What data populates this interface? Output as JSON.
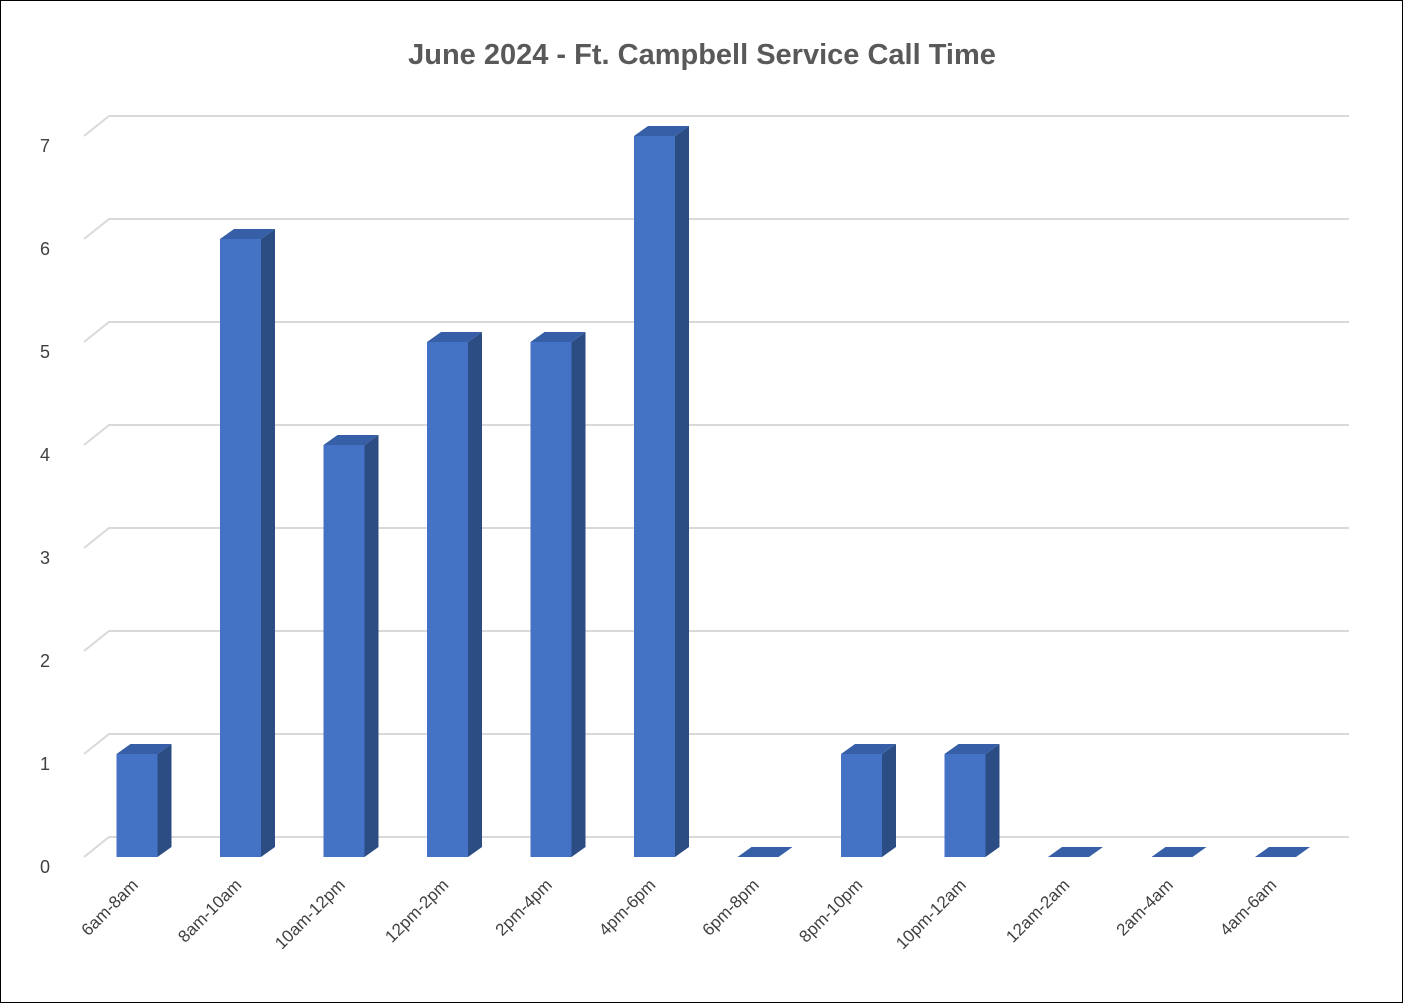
{
  "chart_data": {
    "type": "bar",
    "title": "June 2024 - Ft. Campbell Service Call Time",
    "xlabel": "",
    "ylabel": "",
    "categories": [
      "6am-8am",
      "8am-10am",
      "10am-12pm",
      "12pm-2pm",
      "2pm-4pm",
      "4pm-6pm",
      "6pm-8pm",
      "8pm-10pm",
      "10pm-12am",
      "12am-2am",
      "2am-4am",
      "4am-6am"
    ],
    "series": [
      {
        "values": [
          1,
          6,
          4,
          5,
          5,
          7,
          0,
          1,
          1,
          0,
          0,
          0
        ]
      }
    ],
    "ylim": [
      0,
      7
    ],
    "yticks": [
      0,
      1,
      2,
      3,
      4,
      5,
      6,
      7
    ],
    "grid": true,
    "legend": "none",
    "style": "3d-column",
    "colors": {
      "bar_front": "#4472C4",
      "bar_side": "#2C4C84",
      "bar_top": "#365FA8",
      "grid": "#D9D9D9",
      "title": "#595959",
      "ticks": "#404040"
    }
  }
}
